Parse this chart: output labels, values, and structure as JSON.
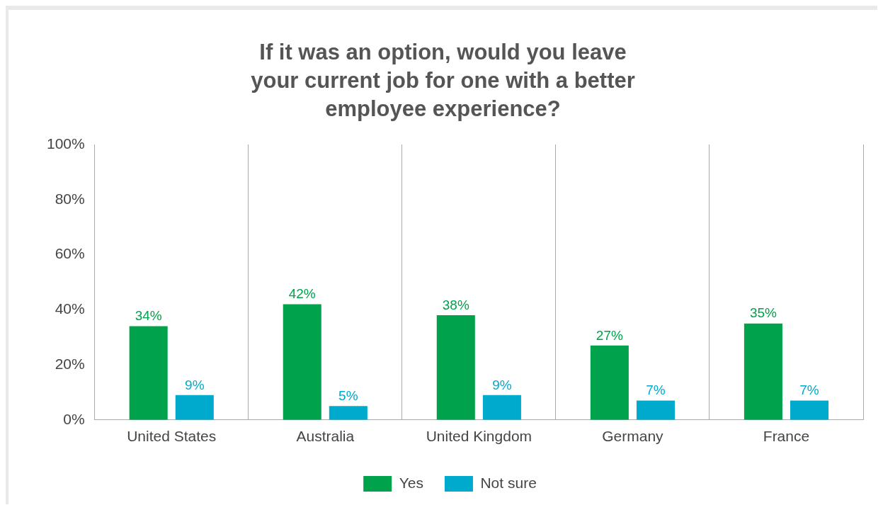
{
  "chart_data": {
    "type": "bar",
    "title": "If it was an option, would you leave your current job for one with a better employee experience?",
    "categories": [
      "United States",
      "Australia",
      "United Kingdom",
      "Germany",
      "France"
    ],
    "series": [
      {
        "name": "Yes",
        "color": "#00a34b",
        "values": [
          34,
          42,
          38,
          27,
          35
        ],
        "value_labels": [
          "34%",
          "42%",
          "38%",
          "27%",
          "35%"
        ]
      },
      {
        "name": "Not sure",
        "color": "#00aacc",
        "values": [
          9,
          5,
          9,
          7,
          7
        ],
        "value_labels": [
          "9%",
          "5%",
          "9%",
          "7%",
          "7%"
        ]
      }
    ],
    "ylim": [
      0,
      100
    ],
    "yticks": [
      {
        "value": 0,
        "label": "0%"
      },
      {
        "value": 20,
        "label": "20%"
      },
      {
        "value": 40,
        "label": "40%"
      },
      {
        "value": 60,
        "label": "60%"
      },
      {
        "value": 80,
        "label": "80%"
      },
      {
        "value": 100,
        "label": "100%"
      }
    ],
    "grid": "x",
    "legend": "bottom"
  }
}
